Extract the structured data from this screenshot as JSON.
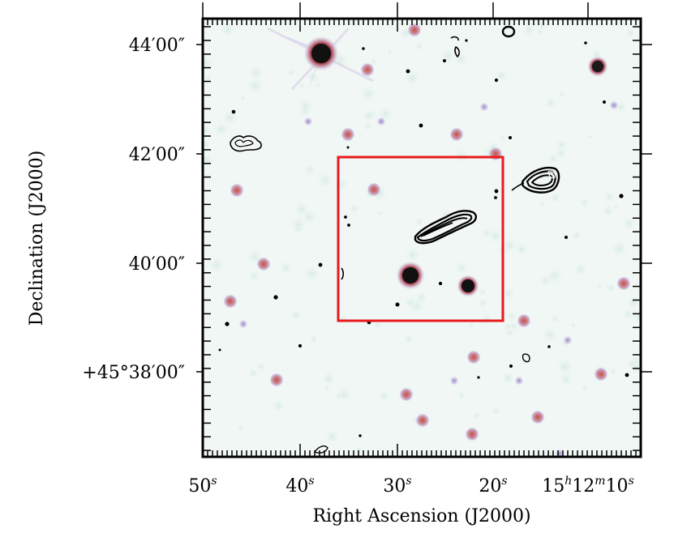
{
  "figure": {
    "xlabel": "Right Ascension (J2000)",
    "ylabel": "Declination (J2000)",
    "x_ticks": [
      {
        "label": "50",
        "sup": "s"
      },
      {
        "label": "40",
        "sup": "s"
      },
      {
        "label": "30",
        "sup": "s"
      },
      {
        "label": "20",
        "sup": "s"
      },
      {
        "label": "15",
        "sup": "h",
        "label2": "12",
        "sup2": "m",
        "label3": "10",
        "sup3": "s"
      }
    ],
    "y_ticks": [
      {
        "label": "44′00″"
      },
      {
        "label": "42′00″"
      },
      {
        "label": "40′00″"
      },
      {
        "label": "+45°38′00″"
      }
    ],
    "colors": {
      "box": "#e8191c",
      "contour": "#000000",
      "background": "#f1f7f5",
      "star_core": "#1b1b1b",
      "star_halo": "#c86a7a"
    }
  }
}
